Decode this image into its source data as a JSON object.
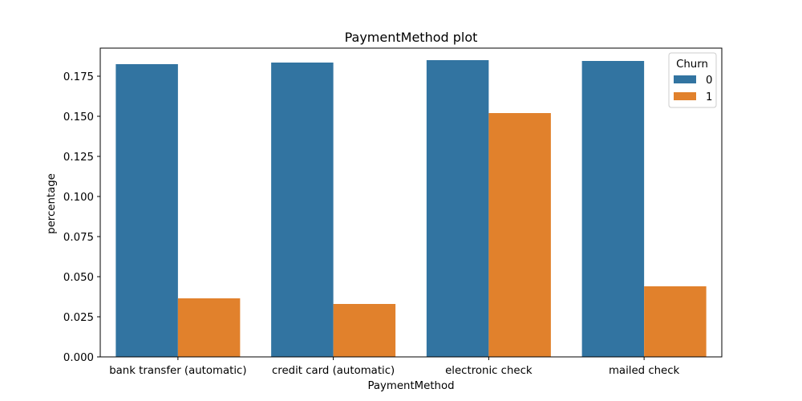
{
  "chart_data": {
    "type": "bar",
    "title": "PaymentMethod plot",
    "xlabel": "PaymentMethod",
    "ylabel": "percentage",
    "categories": [
      "bank transfer (automatic)",
      "credit card (automatic)",
      "electronic check",
      "mailed check"
    ],
    "series": [
      {
        "name": "0",
        "color": "#3274a1",
        "values": [
          0.1825,
          0.1835,
          0.185,
          0.1845
        ]
      },
      {
        "name": "1",
        "color": "#e1812c",
        "values": [
          0.0365,
          0.033,
          0.152,
          0.044
        ]
      }
    ],
    "ylim": [
      0,
      0.1925
    ],
    "yticks": [
      0.0,
      0.025,
      0.05,
      0.075,
      0.1,
      0.125,
      0.15,
      0.175
    ],
    "ytick_labels": [
      "0.000",
      "0.025",
      "0.050",
      "0.075",
      "0.100",
      "0.125",
      "0.150",
      "0.175"
    ],
    "legend": {
      "title": "Churn",
      "placement": "top-right"
    },
    "grid": false
  }
}
